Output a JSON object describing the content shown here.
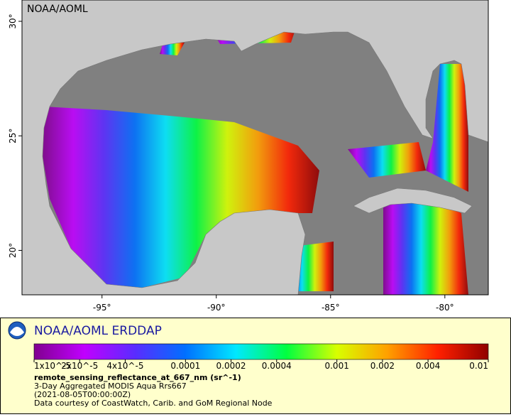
{
  "header": {
    "watermark": "NOAA/AOML"
  },
  "map": {
    "xlim": [
      -98.5,
      -78.1
    ],
    "ylim": [
      18.06,
      30.93
    ],
    "xticks": [
      {
        "value": -95,
        "label": "-95°"
      },
      {
        "value": -90,
        "label": "-90°"
      },
      {
        "value": -85,
        "label": "-85°"
      },
      {
        "value": -80,
        "label": "-80°"
      }
    ],
    "yticks": [
      {
        "value": 20,
        "label": "20°"
      },
      {
        "value": 25,
        "label": "25°"
      },
      {
        "value": 30,
        "label": "30°"
      }
    ],
    "ocean_color": "#808080",
    "land_color": "#c8c8c8"
  },
  "legend": {
    "title": "NOAA/AOML ERDDAP",
    "colorbar": {
      "lim": [
        1e-05,
        0.01
      ],
      "log": true,
      "ticks": [
        {
          "value": 1e-05,
          "label": "1x10^-5"
        },
        {
          "value": 2e-05,
          "label": "2x10^-5"
        },
        {
          "value": 4e-05,
          "label": "4x10^-5"
        },
        0.0001,
        0.0002,
        0.0004,
        0.001,
        0.002,
        0.004,
        0.01
      ],
      "colors": [
        "#80008f",
        "#c000ff",
        "#5a2cff",
        "#0070ff",
        "#00e8ff",
        "#00ff40",
        "#d8ff00",
        "#ffa000",
        "#ff2000",
        "#900000"
      ]
    },
    "variable": "remote_sensing_reflectance_at_667_nm (sr^-1)",
    "lines": [
      "3-Day Aggregated MODIS Aqua Rrs667",
      "(2021-08-05T00:00:00Z)",
      "Data courtesy of CoastWatch, Carib. and GoM Regional Node"
    ]
  }
}
